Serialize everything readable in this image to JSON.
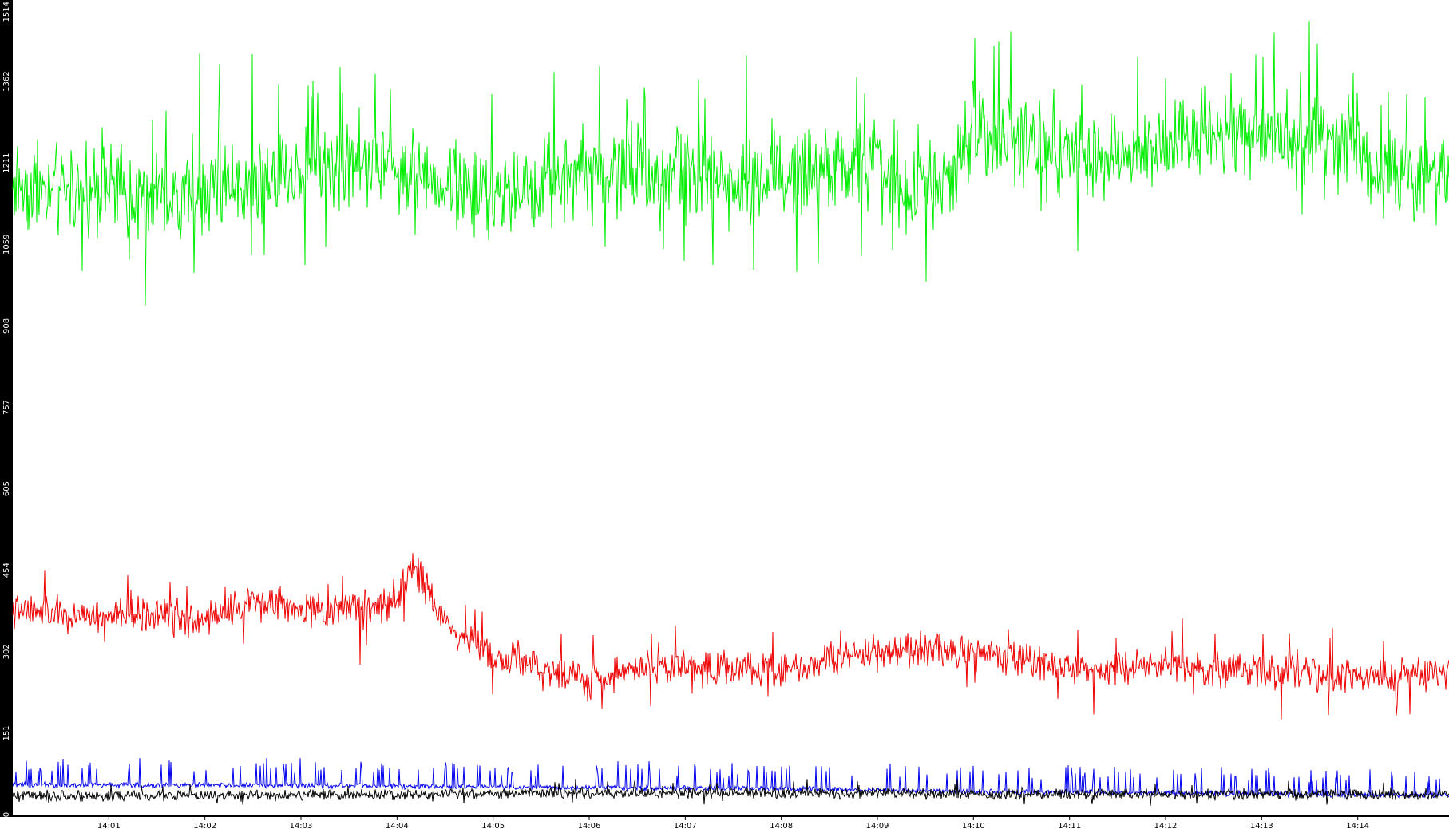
{
  "chart_data": {
    "type": "line",
    "title": "",
    "xlabel": "",
    "ylabel": "",
    "grid": false,
    "legend": "none",
    "background": "#ffffff",
    "axis_color": "#000000",
    "ylim": [
      0,
      1514
    ],
    "yticks": [
      "0",
      "151",
      "302",
      "454",
      "605",
      "757",
      "908",
      "1059",
      "1211",
      "1362",
      "1514"
    ],
    "xlim_minutes": [
      840.0,
      854.95
    ],
    "xticks": [
      {
        "label": "14:01",
        "minute": 841
      },
      {
        "label": "14:02",
        "minute": 842
      },
      {
        "label": "14:03",
        "minute": 843
      },
      {
        "label": "14:04",
        "minute": 844
      },
      {
        "label": "14:05",
        "minute": 845
      },
      {
        "label": "14:06",
        "minute": 846
      },
      {
        "label": "14:07",
        "minute": 847
      },
      {
        "label": "14:08",
        "minute": 848
      },
      {
        "label": "14:09",
        "minute": 849
      },
      {
        "label": "14:10",
        "minute": 850
      },
      {
        "label": "14:11",
        "minute": 851
      },
      {
        "label": "14:12",
        "minute": 852
      },
      {
        "label": "14:13",
        "minute": 853
      },
      {
        "label": "14:14",
        "minute": 854
      }
    ],
    "series": [
      {
        "color": "#00ee00",
        "noise": 95,
        "spikes": 0.06,
        "x": [
          840.0,
          840.5,
          841.0,
          841.5,
          842.0,
          842.5,
          843.0,
          843.5,
          844.0,
          844.5,
          845.0,
          845.5,
          846.0,
          846.5,
          847.0,
          847.5,
          848.0,
          848.5,
          849.0,
          849.3,
          849.8,
          850.0,
          850.5,
          851.0,
          851.5,
          852.0,
          852.5,
          853.0,
          853.5,
          854.0,
          854.3,
          854.95
        ],
        "y": [
          1170,
          1160,
          1160,
          1130,
          1160,
          1185,
          1200,
          1215,
          1200,
          1180,
          1150,
          1160,
          1200,
          1195,
          1190,
          1175,
          1185,
          1200,
          1210,
          1140,
          1190,
          1280,
          1250,
          1230,
          1220,
          1240,
          1270,
          1260,
          1270,
          1250,
          1170,
          1190
        ]
      },
      {
        "color": "#ee0000",
        "noise": 38,
        "spikes": 0.04,
        "x": [
          840.0,
          840.5,
          841.0,
          841.5,
          842.0,
          842.5,
          843.0,
          843.5,
          844.0,
          844.15,
          844.3,
          844.6,
          845.0,
          845.5,
          846.0,
          846.5,
          847.0,
          847.5,
          848.0,
          848.5,
          849.0,
          849.5,
          850.0,
          850.5,
          851.0,
          851.5,
          852.0,
          852.5,
          853.0,
          853.5,
          854.0,
          854.5,
          854.95
        ],
        "y": [
          380,
          370,
          370,
          375,
          360,
          395,
          380,
          380,
          395,
          470,
          420,
          335,
          300,
          270,
          250,
          270,
          280,
          270,
          270,
          290,
          300,
          310,
          300,
          290,
          270,
          270,
          280,
          270,
          265,
          260,
          250,
          260,
          265
        ]
      },
      {
        "color": "#0000ee",
        "noise": 6,
        "spikes": 0.1,
        "spikeHeight": 40,
        "x": [
          840.0,
          842.0,
          844.0,
          846.0,
          848.0,
          850.0,
          852.0,
          854.0,
          854.95
        ],
        "y": [
          55,
          55,
          53,
          50,
          48,
          43,
          40,
          37,
          35
        ]
      },
      {
        "color": "#000000",
        "noise": 12,
        "spikes": 0.03,
        "x": [
          840.0,
          842.0,
          844.0,
          846.0,
          848.0,
          850.0,
          852.0,
          854.0,
          854.95
        ],
        "y": [
          35,
          35,
          38,
          40,
          40,
          38,
          38,
          37,
          35
        ]
      }
    ]
  }
}
